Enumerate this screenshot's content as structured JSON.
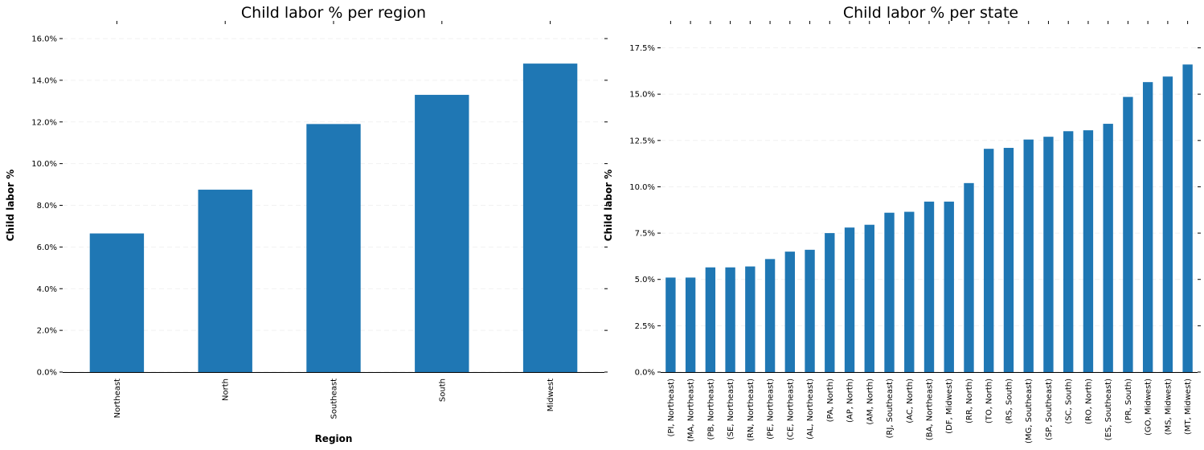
{
  "chart_data": [
    {
      "type": "bar",
      "title": "Child labor % per region",
      "xlabel": "Region",
      "ylabel": "Child labor %",
      "categories": [
        "Northeast",
        "North",
        "Southeast",
        "South",
        "Midwest"
      ],
      "values": [
        6.65,
        8.75,
        11.9,
        13.3,
        14.8
      ],
      "ylim": [
        0,
        16.0
      ],
      "yticks": [
        "0.0%",
        "2.0%",
        "4.0%",
        "6.0%",
        "8.0%",
        "10.0%",
        "12.0%",
        "14.0%",
        "16.0%"
      ],
      "ytick_values": [
        0,
        2,
        4,
        6,
        8,
        10,
        12,
        14,
        16
      ],
      "color": "#1f77b4",
      "grid": true
    },
    {
      "type": "bar",
      "title": "Child labor % per state",
      "xlabel": "",
      "ylabel": "Child labor %",
      "categories": [
        "(PI, Northeast)",
        "(MA, Northeast)",
        "(PB, Northeast)",
        "(SE, Northeast)",
        "(RN, Northeast)",
        "(PE, Northeast)",
        "(CE, Northeast)",
        "(AL, Northeast)",
        "(PA, North)",
        "(AP, North)",
        "(AM, North)",
        "(RJ, Southeast)",
        "(AC, North)",
        "(BA, Northeast)",
        "(DF, Midwest)",
        "(RR, North)",
        "(TO, North)",
        "(RS, South)",
        "(MG, Southeast)",
        "(SP, Southeast)",
        "(SC, South)",
        "(RO, North)",
        "(ES, Southeast)",
        "(PR, South)",
        "(GO, Midwest)",
        "(MS, Midwest)",
        "(MT, Midwest)"
      ],
      "values": [
        5.1,
        5.1,
        5.65,
        5.65,
        5.7,
        6.1,
        6.5,
        6.6,
        7.5,
        7.8,
        7.95,
        8.6,
        8.65,
        9.2,
        9.2,
        10.2,
        12.05,
        12.1,
        12.55,
        12.7,
        13.0,
        13.05,
        13.4,
        14.85,
        15.65,
        15.95,
        16.6
      ],
      "ylim": [
        0,
        18.0
      ],
      "yticks": [
        "0.0%",
        "2.5%",
        "5.0%",
        "7.5%",
        "10.0%",
        "12.5%",
        "15.0%",
        "17.5%"
      ],
      "ytick_values": [
        0,
        2.5,
        5,
        7.5,
        10,
        12.5,
        15,
        17.5
      ],
      "color": "#1f77b4",
      "grid": true
    }
  ]
}
